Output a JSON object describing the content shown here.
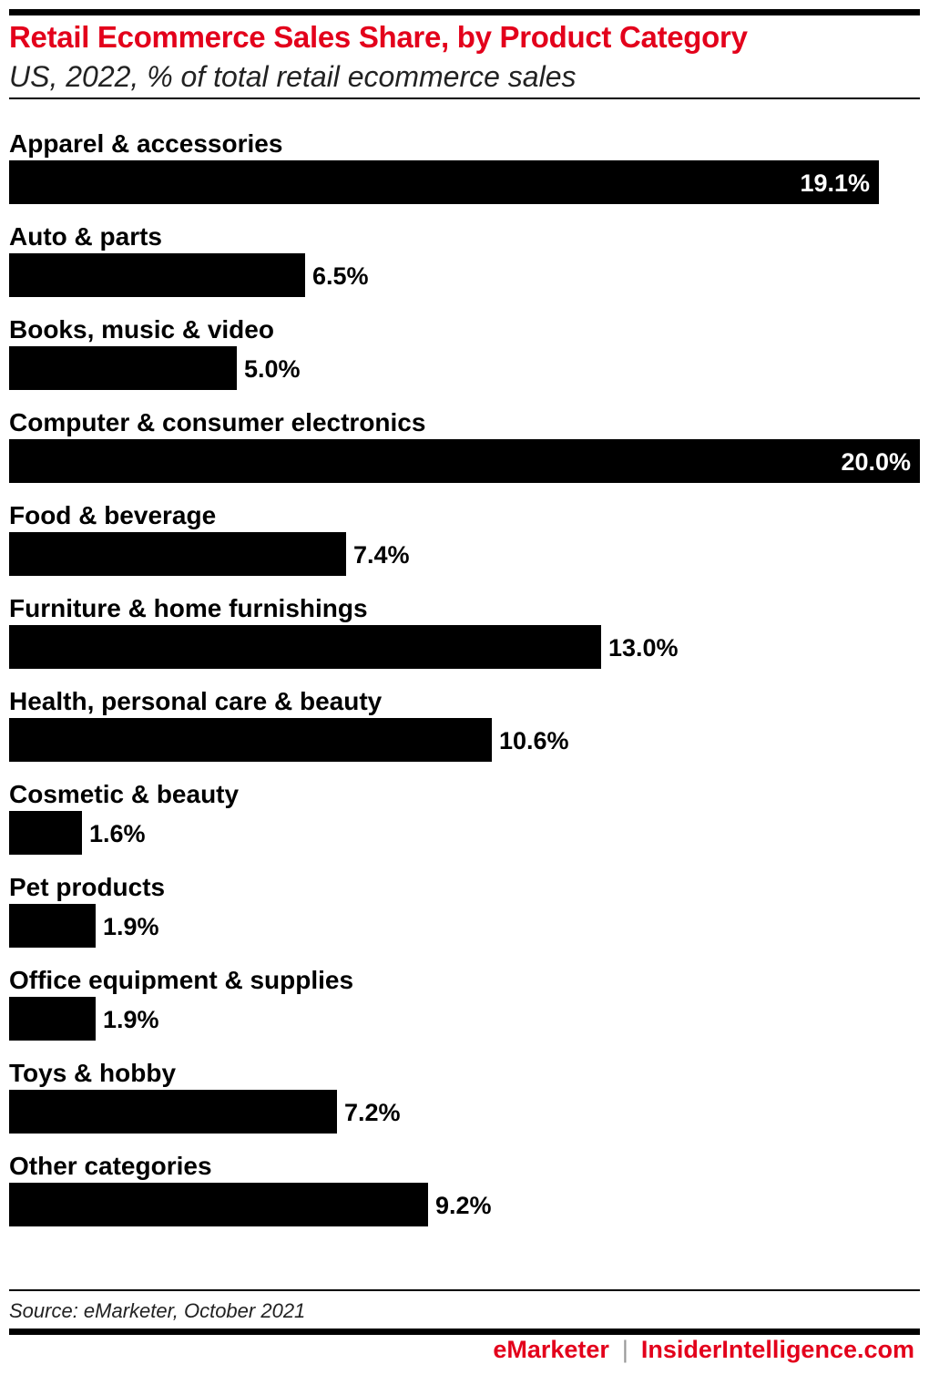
{
  "header": {
    "title": "Retail Ecommerce Sales Share, by Product Category",
    "subtitle": "US, 2022, % of total retail ecommerce sales"
  },
  "chart_data": {
    "type": "bar",
    "orientation": "horizontal",
    "title": "Retail Ecommerce Sales Share, by Product Category",
    "subtitle": "US, 2022, % of total retail ecommerce sales",
    "categories": [
      "Apparel & accessories",
      "Auto & parts",
      "Books, music & video",
      "Computer & consumer electronics",
      "Food & beverage",
      "Furniture & home furnishings",
      "Health, personal care & beauty",
      "Cosmetic & beauty",
      "Pet products",
      "Office equipment & supplies",
      "Toys & hobby",
      "Other categories"
    ],
    "values": [
      19.1,
      6.5,
      5.0,
      20.0,
      7.4,
      13.0,
      10.6,
      1.6,
      1.9,
      1.9,
      7.2,
      9.2
    ],
    "value_labels": [
      "19.1%",
      "6.5%",
      "5.0%",
      "20.0%",
      "7.4%",
      "13.0%",
      "10.6%",
      "1.6%",
      "1.9%",
      "1.9%",
      "7.2%",
      "9.2%"
    ],
    "unit": "%",
    "xlim": [
      0,
      20
    ],
    "grid": false,
    "bar_color": "#000000"
  },
  "footer": {
    "source": "Source: eMarketer, October 2021",
    "brand_primary": "eMarketer",
    "separator": "|",
    "brand_secondary": "InsiderIntelligence.com"
  },
  "colors": {
    "title": "#e3001b",
    "brand": "#e3001b",
    "bars": "#000000"
  }
}
